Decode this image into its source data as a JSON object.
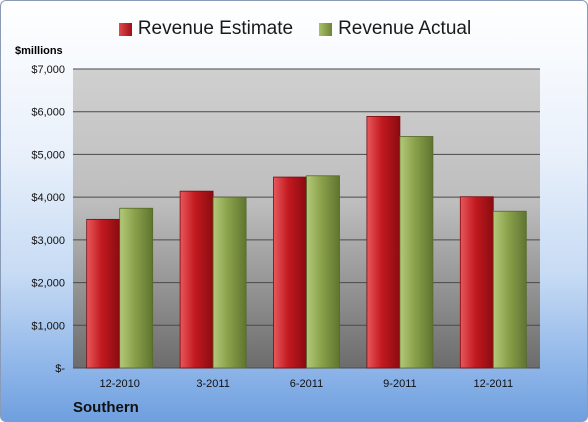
{
  "chart_data": {
    "type": "bar",
    "title": "",
    "ylabel": "$millions",
    "xlabel": "",
    "footer": "Southern",
    "categories": [
      "12-2010",
      "3-2011",
      "6-2011",
      "9-2011",
      "12-2011"
    ],
    "series": [
      {
        "name": "Revenue Estimate",
        "color": "#c0161b",
        "values": [
          3480,
          4140,
          4470,
          5890,
          4010
        ]
      },
      {
        "name": "Revenue Actual",
        "color": "#8aa14b",
        "values": [
          3740,
          4000,
          4500,
          5420,
          3670
        ]
      }
    ],
    "ylim": [
      0,
      7000
    ],
    "yticks": [
      0,
      1000,
      2000,
      3000,
      4000,
      5000,
      6000,
      7000
    ],
    "ytick_labels": [
      "$-",
      "$1,000",
      "$2,000",
      "$3,000",
      "$4,000",
      "$5,000",
      "$6,000",
      "$7,000"
    ],
    "legend": "top",
    "grid": true
  }
}
